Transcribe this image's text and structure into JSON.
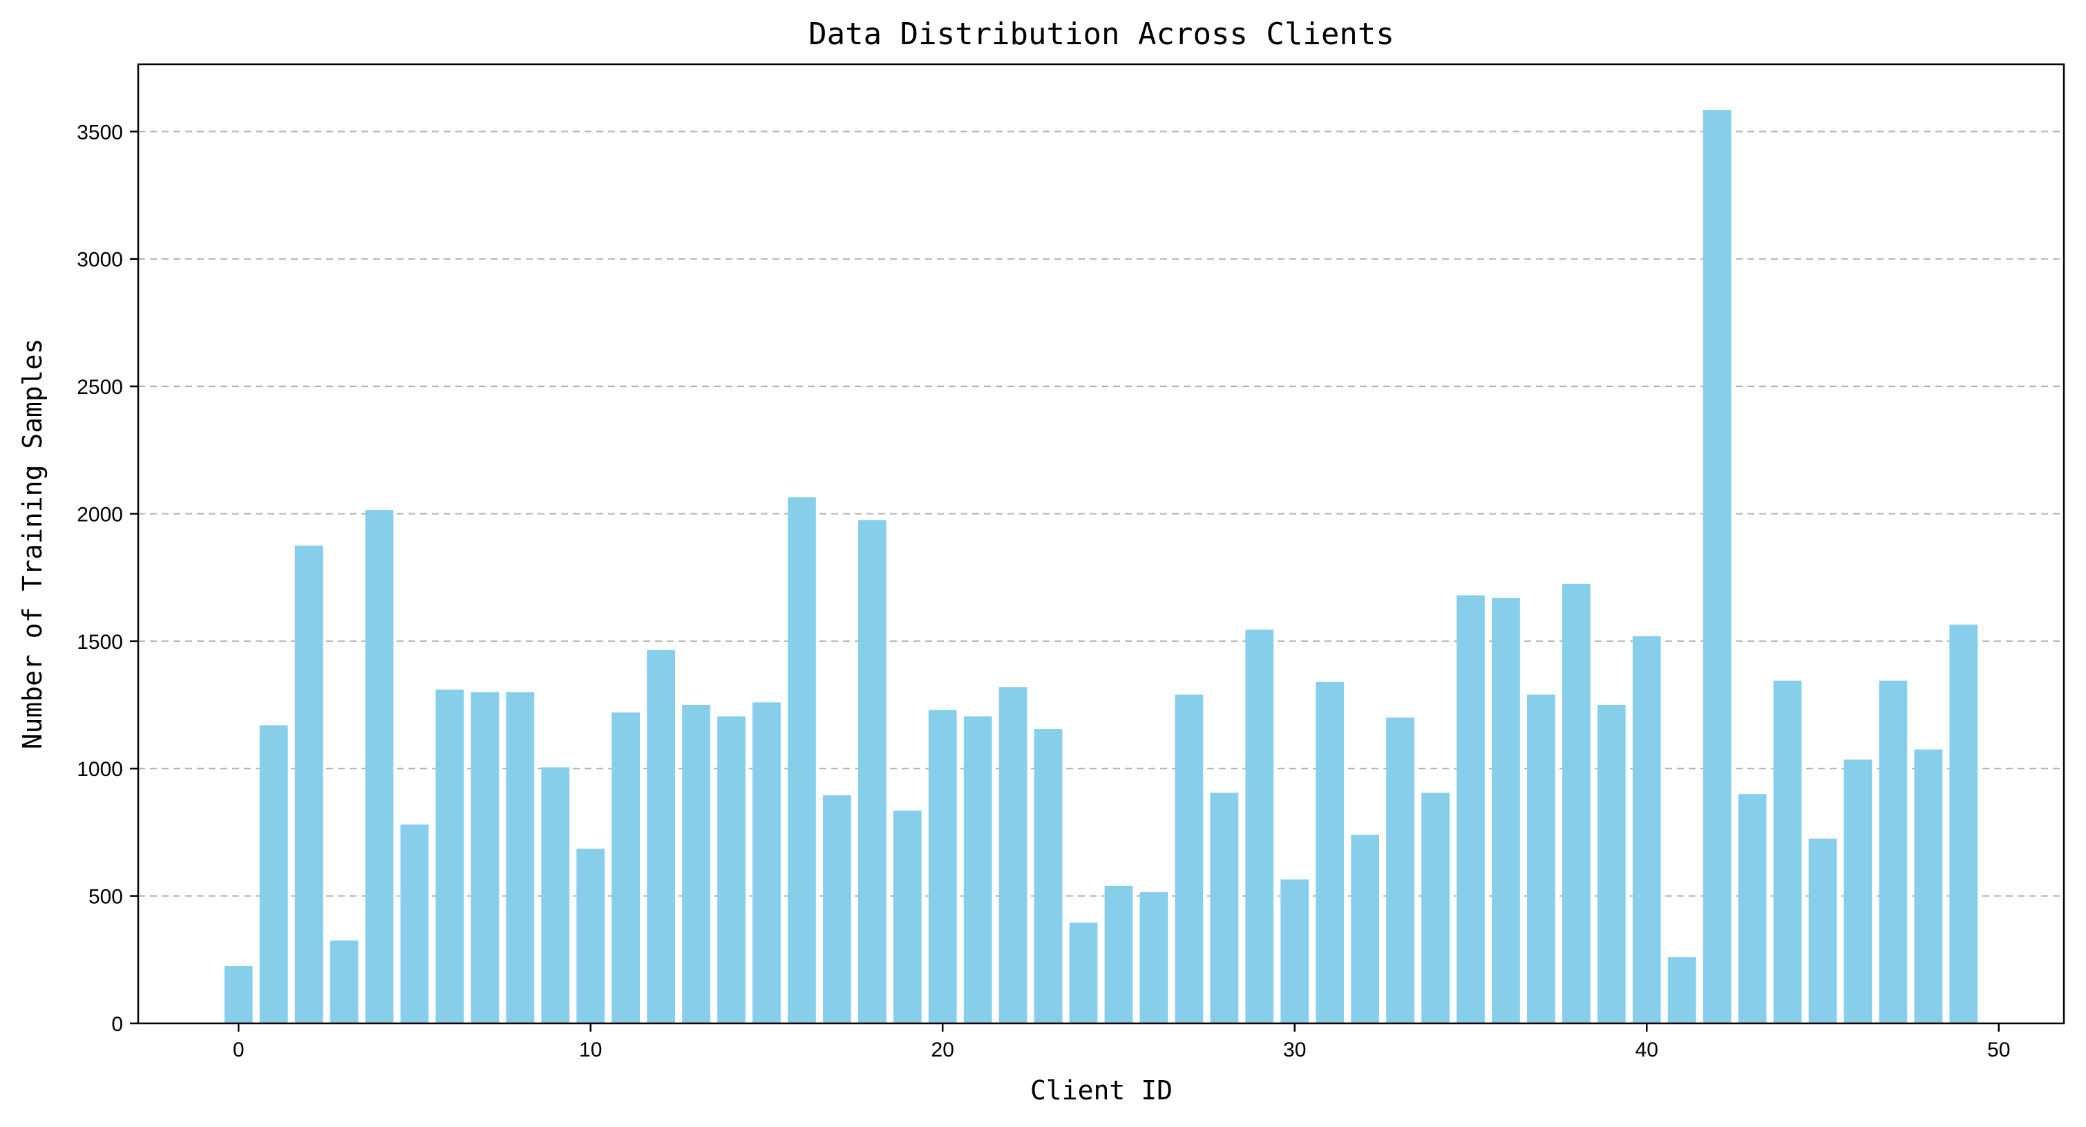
{
  "chart_data": {
    "type": "bar",
    "title": "Data Distribution Across Clients",
    "xlabel": "Client ID",
    "ylabel": "Number of Training Samples",
    "x": [
      0,
      1,
      2,
      3,
      4,
      5,
      6,
      7,
      8,
      9,
      10,
      11,
      12,
      13,
      14,
      15,
      16,
      17,
      18,
      19,
      20,
      21,
      22,
      23,
      24,
      25,
      26,
      27,
      28,
      29,
      30,
      31,
      32,
      33,
      34,
      35,
      36,
      37,
      38,
      39,
      40,
      41,
      42,
      43,
      44,
      45,
      46,
      47,
      48,
      49
    ],
    "values": [
      225,
      1170,
      1875,
      325,
      2015,
      780,
      1310,
      1300,
      1300,
      1005,
      685,
      1220,
      1465,
      1250,
      1205,
      1260,
      2065,
      895,
      1975,
      835,
      1230,
      1205,
      1320,
      1155,
      395,
      540,
      515,
      1290,
      905,
      1545,
      565,
      1340,
      740,
      1200,
      905,
      1680,
      1670,
      1290,
      1725,
      1250,
      1520,
      260,
      3585,
      900,
      1345,
      725,
      1035,
      1345,
      1075,
      1565
    ],
    "xlim": [
      -2.85,
      51.85
    ],
    "ylim": [
      0,
      3764
    ],
    "xticks": [
      0,
      10,
      20,
      30,
      40,
      50
    ],
    "yticks": [
      0,
      500,
      1000,
      1500,
      2000,
      2500,
      3000,
      3500
    ],
    "grid": "y-dashed",
    "bar_color": "#87CEEB",
    "grid_color": "#b0b0b0"
  }
}
